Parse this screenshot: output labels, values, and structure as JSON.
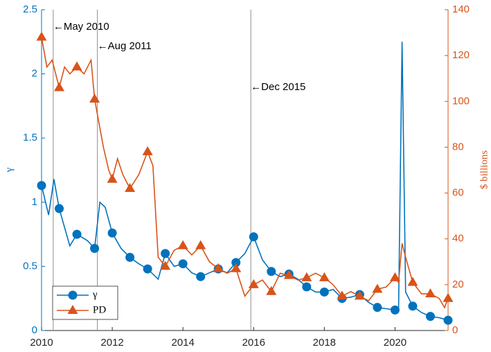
{
  "chart_data": {
    "type": "line",
    "xlim": [
      2010,
      2021.5
    ],
    "xticks": [
      2010,
      2012,
      2014,
      2016,
      2018,
      2020
    ],
    "ylim": [
      0,
      2.5
    ],
    "yticks": [
      0,
      0.5,
      1,
      1.5,
      2,
      2.5
    ],
    "ylabel": "γ",
    "y2lim": [
      0,
      140
    ],
    "y2ticks": [
      0,
      20,
      40,
      60,
      80,
      100,
      120,
      140
    ],
    "y2label": "$ billions",
    "legend": "lower left",
    "annotations": [
      {
        "x": 2010.33,
        "text": "←May 2010"
      },
      {
        "x": 2011.58,
        "text": "←Aug 2011"
      },
      {
        "x": 2015.92,
        "text": "←Dec 2015"
      }
    ],
    "series": [
      {
        "name": "γ",
        "color": "#0072BD",
        "marker": "circle",
        "x": [
          2010,
          2010.2,
          2010.35,
          2010.5,
          2010.8,
          2011,
          2011.3,
          2011.5,
          2011.65,
          2011.8,
          2012,
          2012.25,
          2012.5,
          2012.75,
          2013,
          2013.3,
          2013.5,
          2013.75,
          2014,
          2014.25,
          2014.5,
          2014.75,
          2015,
          2015.25,
          2015.5,
          2015.75,
          2016,
          2016.25,
          2016.5,
          2016.75,
          2017,
          2017.25,
          2017.5,
          2017.75,
          2018,
          2018.25,
          2018.5,
          2018.75,
          2019,
          2019.25,
          2019.5,
          2019.75,
          2020,
          2020.1,
          2020.2,
          2020.3,
          2020.5,
          2020.75,
          2021,
          2021.25,
          2021.5
        ],
        "values": [
          1.13,
          0.9,
          1.18,
          0.95,
          0.66,
          0.75,
          0.7,
          0.64,
          1.0,
          0.96,
          0.76,
          0.64,
          0.57,
          0.52,
          0.48,
          0.4,
          0.6,
          0.5,
          0.52,
          0.45,
          0.42,
          0.45,
          0.48,
          0.45,
          0.53,
          0.6,
          0.73,
          0.55,
          0.46,
          0.42,
          0.44,
          0.4,
          0.34,
          0.3,
          0.3,
          0.32,
          0.25,
          0.26,
          0.28,
          0.22,
          0.18,
          0.17,
          0.16,
          0.15,
          2.25,
          0.3,
          0.19,
          0.14,
          0.11,
          0.1,
          0.08
        ]
      },
      {
        "name": "PD",
        "color": "#D95319",
        "marker": "triangle",
        "axis": "y2",
        "x": [
          2010,
          2010.15,
          2010.3,
          2010.5,
          2010.65,
          2010.8,
          2011,
          2011.2,
          2011.4,
          2011.5,
          2011.75,
          2011.9,
          2012,
          2012.15,
          2012.3,
          2012.5,
          2012.75,
          2013,
          2013.15,
          2013.3,
          2013.5,
          2013.75,
          2014,
          2014.25,
          2014.5,
          2014.75,
          2015,
          2015.25,
          2015.5,
          2015.75,
          2016,
          2016.25,
          2016.5,
          2016.75,
          2017,
          2017.25,
          2017.5,
          2017.75,
          2018,
          2018.25,
          2018.5,
          2018.75,
          2019,
          2019.25,
          2019.5,
          2019.75,
          2020,
          2020.1,
          2020.2,
          2020.3,
          2020.5,
          2020.75,
          2021,
          2021.25,
          2021.4,
          2021.5
        ],
        "values": [
          128,
          115,
          118,
          106,
          115,
          112,
          115,
          112,
          118,
          101,
          80,
          70,
          66,
          75,
          68,
          62,
          68,
          78,
          72,
          32,
          28,
          35,
          37,
          33,
          37,
          30,
          27,
          25,
          27,
          15,
          20,
          22,
          17,
          25,
          24,
          22,
          23,
          25,
          23,
          20,
          15,
          17,
          15,
          13,
          18,
          19,
          23,
          21,
          38,
          32,
          21,
          16,
          16,
          14,
          10,
          14
        ]
      }
    ]
  }
}
